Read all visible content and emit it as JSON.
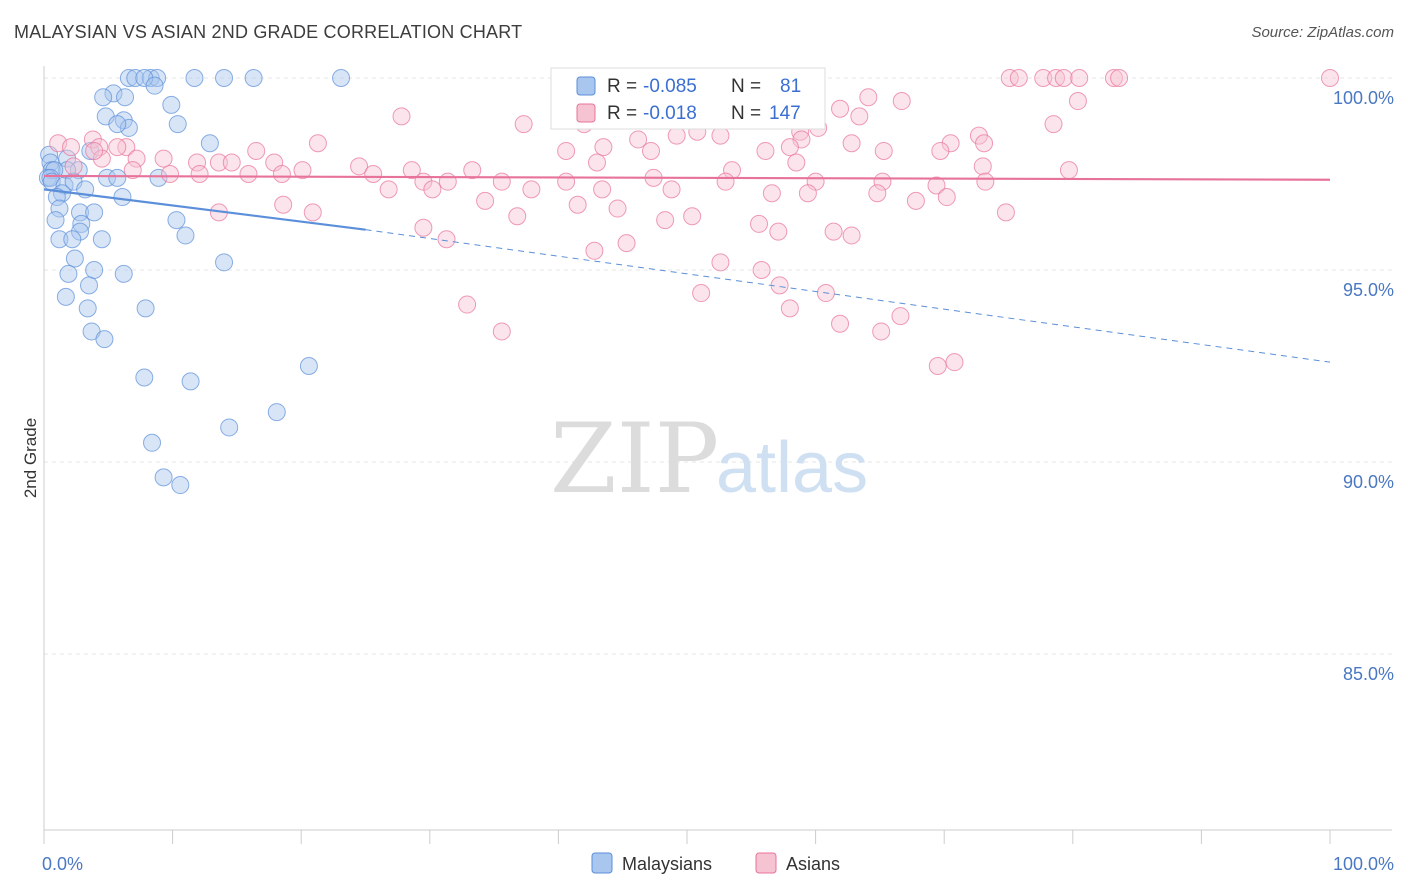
{
  "title": "MALAYSIAN VS ASIAN 2ND GRADE CORRELATION CHART",
  "source": "Source: ZipAtlas.com",
  "watermark": {
    "zip": "ZIP",
    "atlas": "atlas"
  },
  "chart_data": {
    "type": "scatter",
    "title": "MALAYSIAN VS ASIAN 2ND GRADE CORRELATION CHART",
    "xlabel": "",
    "ylabel": "2nd Grade",
    "xlim": [
      0,
      100
    ],
    "ylim": [
      80.5,
      100.8
    ],
    "x_tick_labels": [
      {
        "v": 0,
        "label": "0.0%"
      },
      {
        "v": 100,
        "label": "100.0%"
      }
    ],
    "y_ticks": [
      {
        "v": 100,
        "label": "100.0%"
      },
      {
        "v": 95,
        "label": "95.0%"
      },
      {
        "v": 90,
        "label": "90.0%"
      },
      {
        "v": 85,
        "label": "85.0%"
      }
    ],
    "legend_stats": [
      {
        "series": "Malaysians",
        "r_label": "R =",
        "r": "-0.085",
        "n_label": "N =",
        "n": "81"
      },
      {
        "series": "Asians",
        "r_label": "R =",
        "r": "-0.018",
        "n_label": "N =",
        "n": "147"
      }
    ],
    "series": [
      {
        "name": "Malaysians",
        "color": "#5b8fd9",
        "fill": "#a9c6ee",
        "trend": {
          "x0": 0,
          "y0": 97.1,
          "x1": 25,
          "y1": 96.05,
          "x_end": 100,
          "y_end": 92.6
        },
        "points": [
          [
            6.6,
            100
          ],
          [
            7.1,
            100
          ],
          [
            8.3,
            100
          ],
          [
            8.8,
            100
          ],
          [
            11.7,
            100
          ],
          [
            14,
            100
          ],
          [
            16.3,
            100
          ],
          [
            23.1,
            100
          ],
          [
            7.8,
            100
          ],
          [
            8.6,
            99.8
          ],
          [
            5.4,
            99.6
          ],
          [
            6.3,
            99.5
          ],
          [
            4.6,
            99.5
          ],
          [
            9.9,
            99.3
          ],
          [
            4.8,
            99.0
          ],
          [
            6.2,
            98.9
          ],
          [
            10.4,
            98.8
          ],
          [
            6.6,
            98.7
          ],
          [
            5.7,
            98.8
          ],
          [
            12.9,
            98.3
          ],
          [
            0.4,
            98.0
          ],
          [
            3.6,
            98.1
          ],
          [
            1.8,
            97.9
          ],
          [
            0.5,
            97.8
          ],
          [
            0.6,
            97.6
          ],
          [
            2.7,
            97.6
          ],
          [
            1.8,
            97.6
          ],
          [
            0.8,
            97.6
          ],
          [
            0.3,
            97.4
          ],
          [
            4.9,
            97.4
          ],
          [
            0.5,
            97.4
          ],
          [
            5.7,
            97.4
          ],
          [
            0.6,
            97.3
          ],
          [
            8.9,
            97.4
          ],
          [
            1.6,
            97.2
          ],
          [
            2.3,
            97.3
          ],
          [
            3.2,
            97.1
          ],
          [
            1.4,
            97.0
          ],
          [
            1.0,
            96.9
          ],
          [
            6.1,
            96.9
          ],
          [
            1.2,
            96.6
          ],
          [
            2.8,
            96.5
          ],
          [
            3.9,
            96.5
          ],
          [
            0.9,
            96.3
          ],
          [
            2.9,
            96.2
          ],
          [
            10.3,
            96.3
          ],
          [
            2.8,
            96.0
          ],
          [
            4.5,
            95.8
          ],
          [
            1.2,
            95.8
          ],
          [
            11.0,
            95.9
          ],
          [
            2.2,
            95.8
          ],
          [
            14,
            95.2
          ],
          [
            2.4,
            95.3
          ],
          [
            3.9,
            95.0
          ],
          [
            6.2,
            94.9
          ],
          [
            1.9,
            94.9
          ],
          [
            3.5,
            94.6
          ],
          [
            1.7,
            94.3
          ],
          [
            3.4,
            94.0
          ],
          [
            7.9,
            94.0
          ],
          [
            3.7,
            93.4
          ],
          [
            4.7,
            93.2
          ],
          [
            20.6,
            92.5
          ],
          [
            7.8,
            92.2
          ],
          [
            11.4,
            92.1
          ],
          [
            18.1,
            91.3
          ],
          [
            14.4,
            90.9
          ],
          [
            8.4,
            90.5
          ],
          [
            9.3,
            89.6
          ],
          [
            10.6,
            89.4
          ]
        ]
      },
      {
        "name": "Asians",
        "color": "#e8739a",
        "fill": "#f6c3d3",
        "trend": {
          "x0": 0,
          "y0": 97.45,
          "x1": 100,
          "y1": 97.35
        },
        "points": [
          [
            75.1,
            100
          ],
          [
            75.8,
            100
          ],
          [
            77.7,
            100
          ],
          [
            78.7,
            100
          ],
          [
            79.3,
            100
          ],
          [
            80.5,
            100
          ],
          [
            83.2,
            100
          ],
          [
            83.6,
            100
          ],
          [
            100,
            100
          ],
          [
            64.1,
            99.5
          ],
          [
            66.7,
            99.4
          ],
          [
            80.4,
            99.4
          ],
          [
            61.9,
            99.2
          ],
          [
            41.3,
            99.0
          ],
          [
            27.8,
            99.0
          ],
          [
            63.4,
            99.0
          ],
          [
            37.3,
            98.8
          ],
          [
            42,
            98.8
          ],
          [
            60.2,
            98.7
          ],
          [
            78.5,
            98.8
          ],
          [
            50.8,
            98.6
          ],
          [
            58.8,
            98.6
          ],
          [
            49.2,
            98.5
          ],
          [
            52.6,
            98.5
          ],
          [
            58.9,
            98.4
          ],
          [
            46.2,
            98.4
          ],
          [
            72.7,
            98.5
          ],
          [
            70.5,
            98.3
          ],
          [
            62.8,
            98.3
          ],
          [
            73.1,
            98.3
          ],
          [
            3.8,
            98.4
          ],
          [
            21.3,
            98.3
          ],
          [
            6.4,
            98.2
          ],
          [
            1.1,
            98.3
          ],
          [
            2.1,
            98.2
          ],
          [
            4.3,
            98.2
          ],
          [
            16.5,
            98.1
          ],
          [
            5.7,
            98.2
          ],
          [
            43.5,
            98.2
          ],
          [
            40.6,
            98.1
          ],
          [
            56.1,
            98.1
          ],
          [
            47.2,
            98.1
          ],
          [
            58,
            98.2
          ],
          [
            65.3,
            98.1
          ],
          [
            69.7,
            98.1
          ],
          [
            4.5,
            97.9
          ],
          [
            7.2,
            97.9
          ],
          [
            9.3,
            97.9
          ],
          [
            3.9,
            98.1
          ],
          [
            11.9,
            97.8
          ],
          [
            13.6,
            97.8
          ],
          [
            17.9,
            97.8
          ],
          [
            14.6,
            97.8
          ],
          [
            20.1,
            97.6
          ],
          [
            24.5,
            97.7
          ],
          [
            28.6,
            97.6
          ],
          [
            33.3,
            97.6
          ],
          [
            43.0,
            97.8
          ],
          [
            53.5,
            97.6
          ],
          [
            58.5,
            97.8
          ],
          [
            73,
            97.7
          ],
          [
            79.7,
            97.6
          ],
          [
            2.3,
            97.7
          ],
          [
            6.9,
            97.6
          ],
          [
            9.8,
            97.5
          ],
          [
            12.1,
            97.5
          ],
          [
            15.9,
            97.5
          ],
          [
            18.5,
            97.5
          ],
          [
            25.6,
            97.5
          ],
          [
            29.5,
            97.3
          ],
          [
            31.4,
            97.3
          ],
          [
            35.6,
            97.3
          ],
          [
            40.6,
            97.3
          ],
          [
            47.4,
            97.4
          ],
          [
            53.0,
            97.3
          ],
          [
            60,
            97.3
          ],
          [
            65.2,
            97.3
          ],
          [
            69.4,
            97.2
          ],
          [
            73.2,
            97.3
          ],
          [
            26.8,
            97.1
          ],
          [
            30.2,
            97.1
          ],
          [
            37.9,
            97.1
          ],
          [
            43.4,
            97.1
          ],
          [
            48.8,
            97.1
          ],
          [
            56.6,
            97.0
          ],
          [
            59.4,
            97.0
          ],
          [
            64.8,
            97.0
          ],
          [
            67.8,
            96.8
          ],
          [
            70.2,
            96.9
          ],
          [
            74.8,
            96.5
          ],
          [
            34.3,
            96.8
          ],
          [
            36.8,
            96.4
          ],
          [
            41.5,
            96.7
          ],
          [
            44.6,
            96.6
          ],
          [
            48.3,
            96.3
          ],
          [
            50.4,
            96.4
          ],
          [
            55.6,
            96.2
          ],
          [
            57.1,
            96.0
          ],
          [
            61.4,
            96.0
          ],
          [
            62.8,
            95.9
          ],
          [
            13.6,
            96.5
          ],
          [
            18.6,
            96.7
          ],
          [
            20.9,
            96.5
          ],
          [
            29.5,
            96.1
          ],
          [
            31.3,
            95.8
          ],
          [
            42.8,
            95.5
          ],
          [
            45.3,
            95.7
          ],
          [
            52.6,
            95.2
          ],
          [
            55.8,
            95.0
          ],
          [
            60.8,
            94.4
          ],
          [
            51.1,
            94.4
          ],
          [
            32.9,
            94.1
          ],
          [
            35.6,
            93.4
          ],
          [
            58,
            94.0
          ],
          [
            61.9,
            93.6
          ],
          [
            65.1,
            93.4
          ],
          [
            66.6,
            93.8
          ],
          [
            69.5,
            92.5
          ],
          [
            70.8,
            92.6
          ],
          [
            57.2,
            94.6
          ]
        ]
      }
    ]
  },
  "legend_bottom": [
    {
      "label": "Malaysians"
    },
    {
      "label": "Asians"
    }
  ]
}
